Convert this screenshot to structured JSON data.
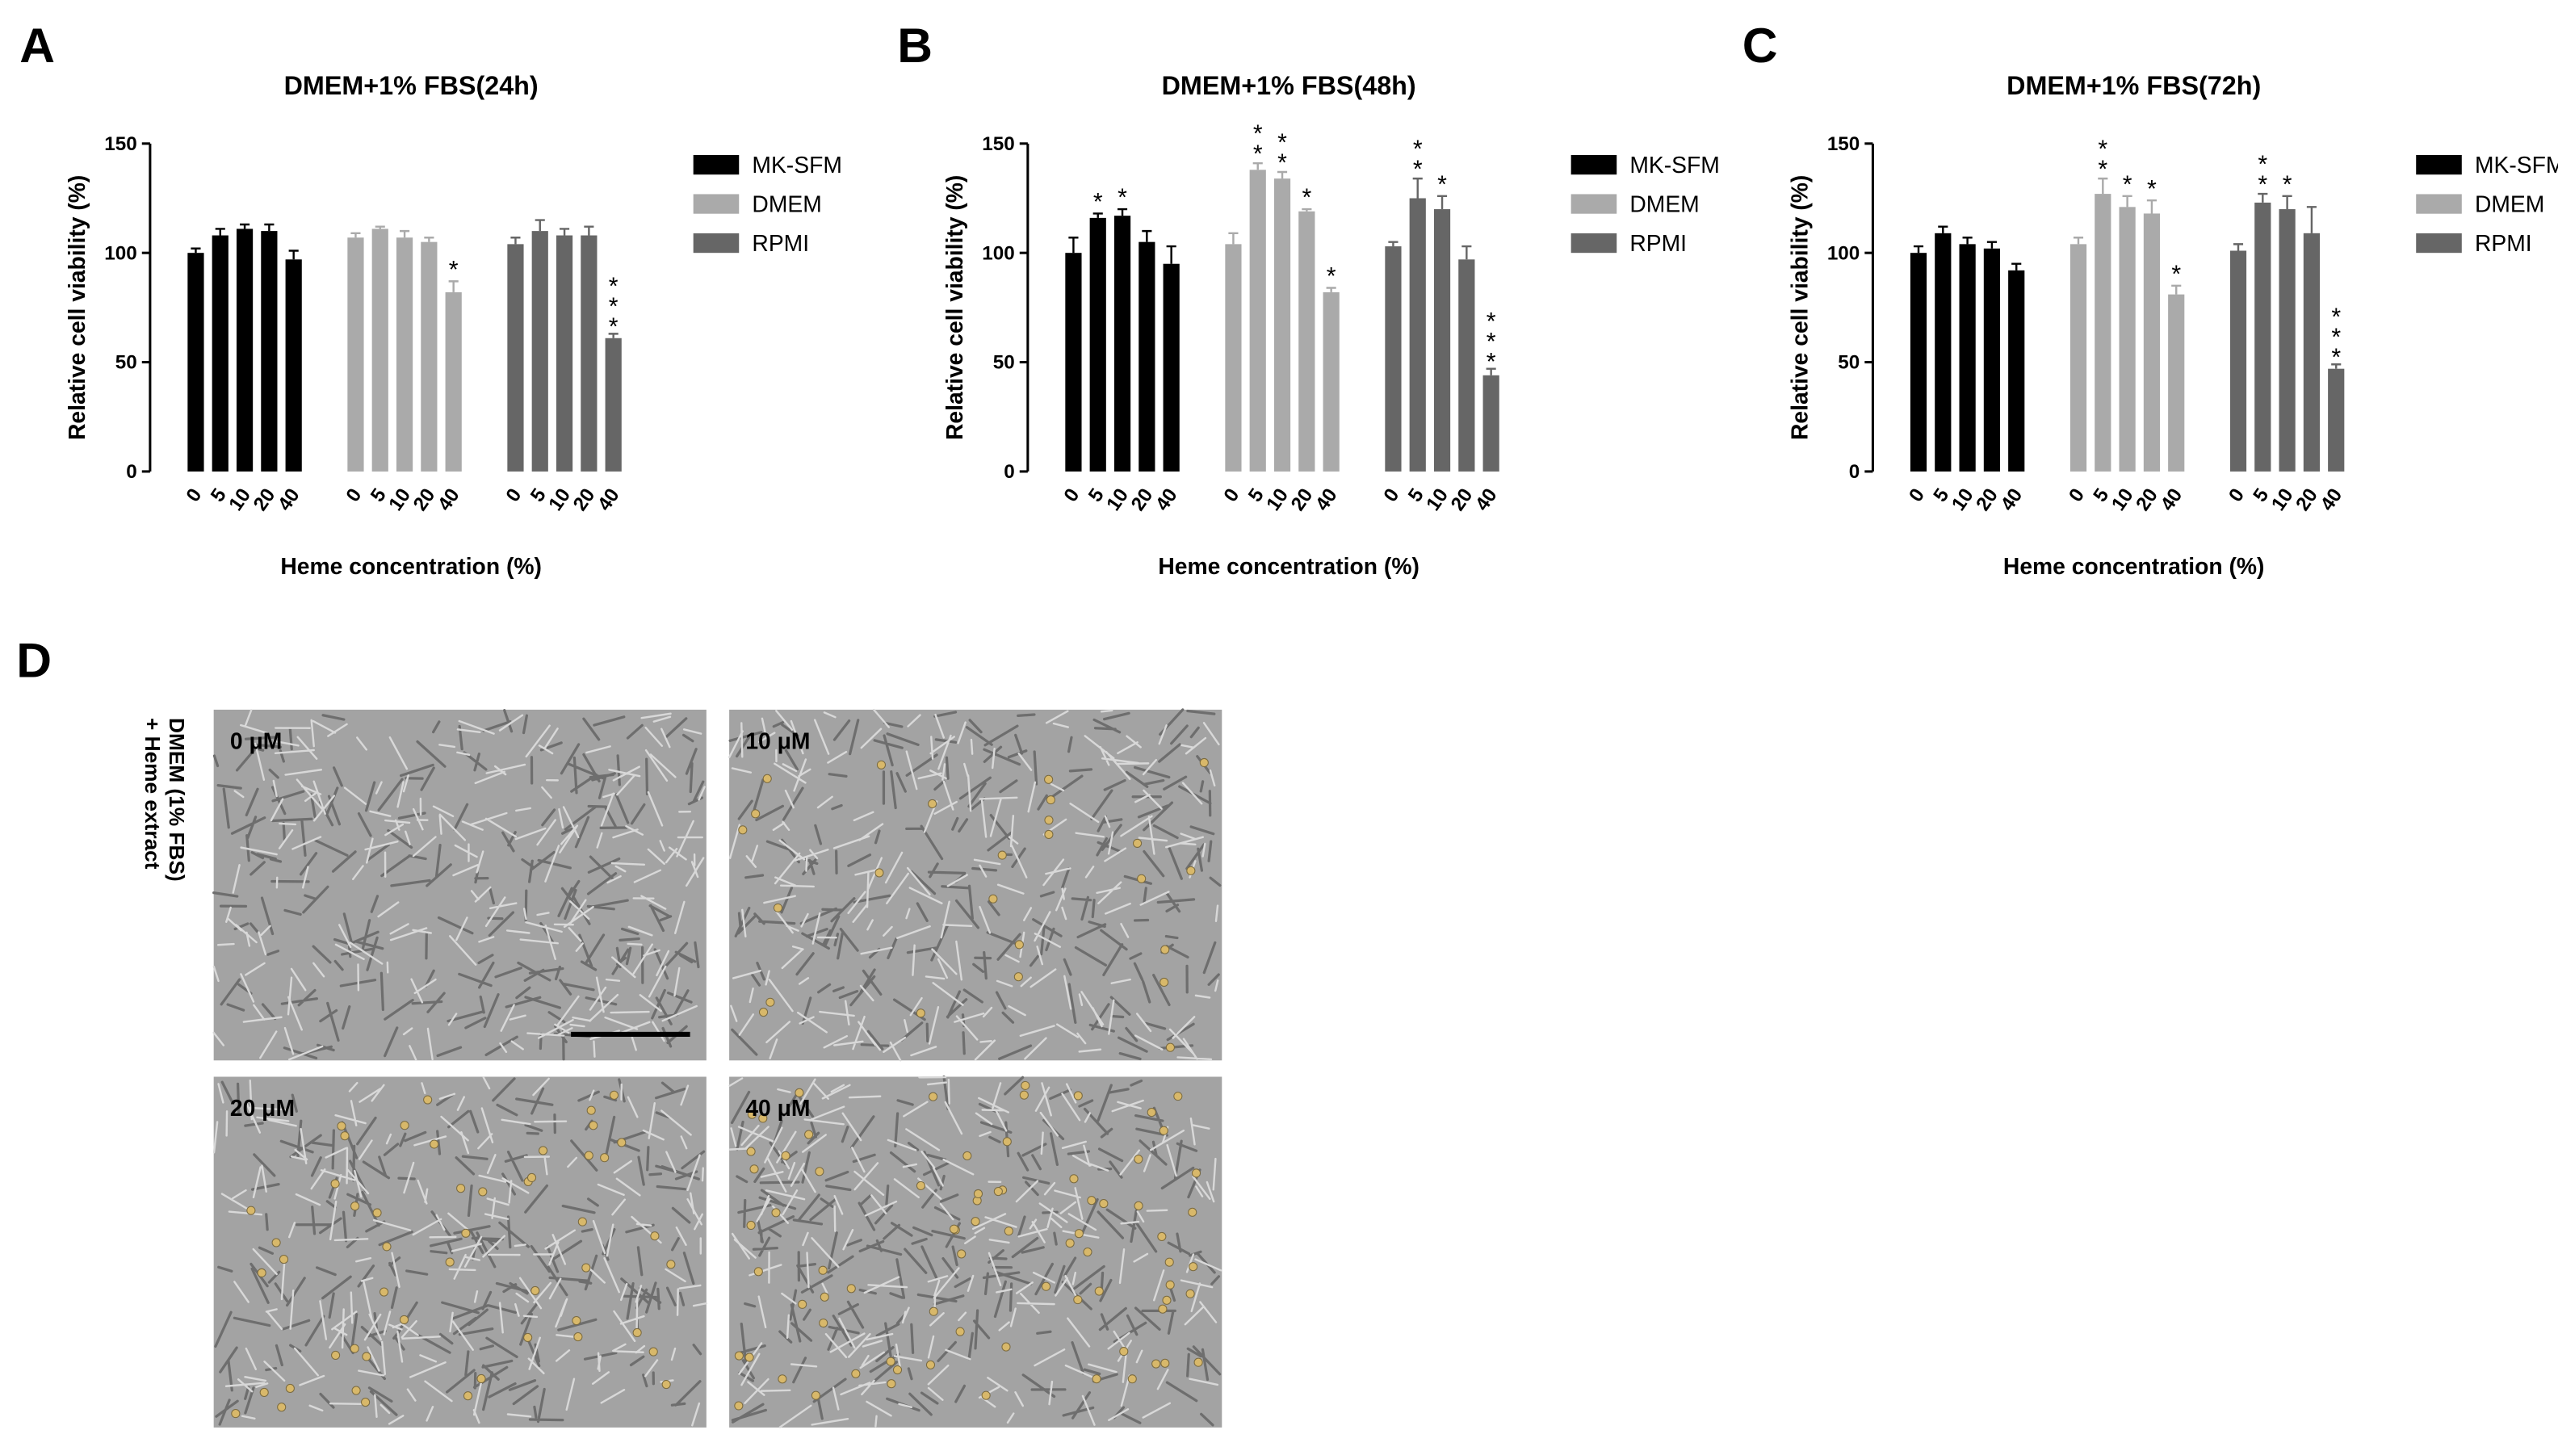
{
  "chart_data": [
    {
      "type": "bar",
      "panel": "A",
      "title": "DMEM+1% FBS(24h)",
      "ylabel": "Relative cell viability (%)",
      "xlabel": "Heme concentration (%)",
      "categories": [
        "0",
        "5",
        "10",
        "20",
        "40"
      ],
      "legend": "right",
      "ylim": [
        0,
        150
      ],
      "yticks": [
        0,
        50,
        100,
        150
      ],
      "series": [
        {
          "name": "MK-SFM",
          "color": "#000000",
          "values": [
            100,
            108,
            111,
            110,
            97
          ],
          "errors": [
            2,
            3,
            2,
            3,
            4
          ],
          "significance": [
            null,
            null,
            null,
            null,
            null
          ]
        },
        {
          "name": "DMEM",
          "color": "#aaaaaa",
          "values": [
            107,
            111,
            107,
            105,
            82
          ],
          "errors": [
            2,
            1,
            3,
            2,
            5
          ],
          "significance": [
            null,
            null,
            null,
            null,
            "*"
          ]
        },
        {
          "name": "RPMI",
          "color": "#666666",
          "values": [
            104,
            110,
            108,
            108,
            61
          ],
          "errors": [
            3,
            5,
            3,
            4,
            2
          ],
          "significance": [
            null,
            null,
            null,
            null,
            "***"
          ]
        }
      ]
    },
    {
      "type": "bar",
      "panel": "B",
      "title": "DMEM+1% FBS(48h)",
      "ylabel": "Relative cell viability (%)",
      "xlabel": "Heme concentration (%)",
      "categories": [
        "0",
        "5",
        "10",
        "20",
        "40"
      ],
      "legend": "right",
      "ylim": [
        0,
        150
      ],
      "yticks": [
        0,
        50,
        100,
        150
      ],
      "series": [
        {
          "name": "MK-SFM",
          "color": "#000000",
          "values": [
            100,
            116,
            117,
            105,
            95
          ],
          "errors": [
            7,
            2,
            3,
            5,
            8
          ],
          "significance": [
            null,
            "*",
            "*",
            null,
            null
          ]
        },
        {
          "name": "DMEM",
          "color": "#aaaaaa",
          "values": [
            104,
            138,
            134,
            119,
            82
          ],
          "errors": [
            5,
            3,
            3,
            1,
            2
          ],
          "significance": [
            null,
            "**",
            "**",
            "*",
            "*"
          ]
        },
        {
          "name": "RPMI",
          "color": "#666666",
          "values": [
            103,
            125,
            120,
            97,
            44
          ],
          "errors": [
            2,
            9,
            6,
            6,
            3
          ],
          "significance": [
            null,
            "**",
            "*",
            null,
            "***"
          ]
        }
      ]
    },
    {
      "type": "bar",
      "panel": "C",
      "title": "DMEM+1% FBS(72h)",
      "ylabel": "Relative cell viability (%)",
      "xlabel": "Heme concentration (%)",
      "categories": [
        "0",
        "5",
        "10",
        "20",
        "40"
      ],
      "legend": "right",
      "ylim": [
        0,
        150
      ],
      "yticks": [
        0,
        50,
        100,
        150
      ],
      "series": [
        {
          "name": "MK-SFM",
          "color": "#000000",
          "values": [
            100,
            109,
            104,
            102,
            92
          ],
          "errors": [
            3,
            3,
            3,
            3,
            3
          ],
          "significance": [
            null,
            null,
            null,
            null,
            null
          ]
        },
        {
          "name": "DMEM",
          "color": "#aaaaaa",
          "values": [
            104,
            127,
            121,
            118,
            81
          ],
          "errors": [
            3,
            7,
            5,
            6,
            4
          ],
          "significance": [
            null,
            "**",
            "*",
            "*",
            "*"
          ]
        },
        {
          "name": "RPMI",
          "color": "#666666",
          "values": [
            101,
            123,
            120,
            109,
            47
          ],
          "errors": [
            3,
            4,
            6,
            12,
            2
          ],
          "significance": [
            null,
            "**",
            "*",
            null,
            "***"
          ]
        }
      ]
    }
  ],
  "panel_d": {
    "label": "D",
    "side_label": [
      "DMEM (1% FBS)",
      "+ Heme extract"
    ],
    "images": [
      {
        "label": "0 μM"
      },
      {
        "label": "10 μM"
      },
      {
        "label": "20 μM"
      },
      {
        "label": "40 μM"
      }
    ]
  }
}
